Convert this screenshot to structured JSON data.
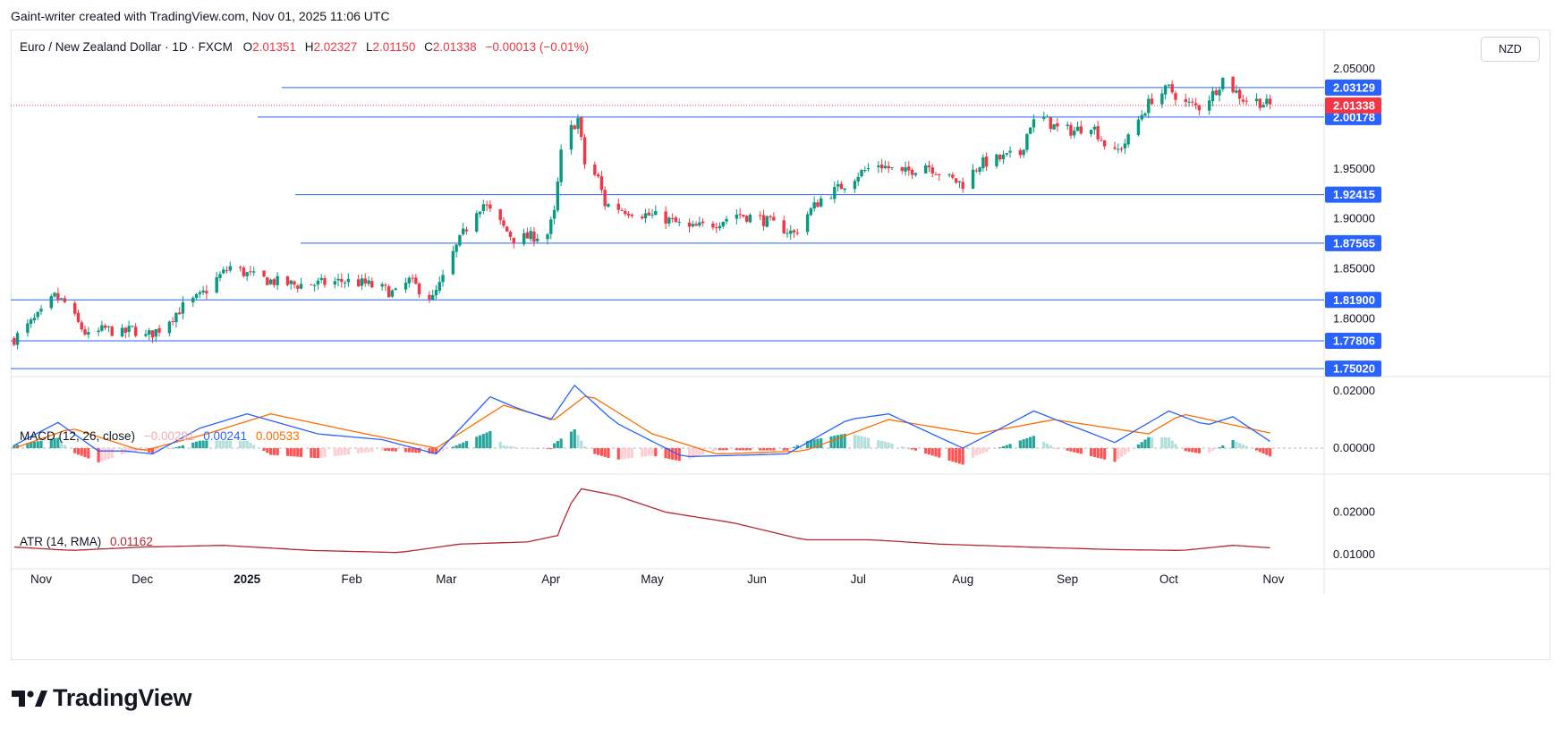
{
  "attribution": "Gaint-writer created with TradingView.com, Nov 01, 2025 11:06 UTC",
  "header": {
    "symbol": "Euro / New Zealand Dollar · 1D · FXCM",
    "o_label": "O",
    "o_value": "2.01351",
    "h_label": "H",
    "h_value": "2.02327",
    "l_label": "L",
    "l_value": "2.01150",
    "c_label": "C",
    "c_value": "2.01338",
    "change": "−0.00013 (−0.01%)",
    "currency": "NZD"
  },
  "macd_legend": {
    "name": "MACD (12, 26, close)",
    "hist": "−0.00291",
    "macd": "0.00241",
    "signal": "0.00533"
  },
  "atr_legend": {
    "name": "ATR (14, RMA)",
    "value": "0.01162"
  },
  "brand": "TradingView",
  "colors": {
    "up": "#22ab94",
    "down": "#f23645",
    "candle_up": "#089981",
    "level_line": "#2962ff",
    "macd": "#2962ff",
    "signal": "#ff6d00",
    "atr": "#b22833"
  },
  "chart_data": [
    {
      "type": "candlestick",
      "title": "Euro / New Zealand Dollar · 1D · FXCM",
      "x_labels": [
        "Nov",
        "Dec",
        "2025",
        "Feb",
        "Mar",
        "Apr",
        "May",
        "Jun",
        "Jul",
        "Aug",
        "Sep",
        "Oct",
        "Nov"
      ],
      "y_ticks": [
        "2.05000",
        "1.95000",
        "1.90000",
        "1.85000",
        "1.80000"
      ],
      "ylim": [
        1.745,
        2.058
      ],
      "current_price": "2.01338",
      "levels": [
        "2.03129",
        "2.00178",
        "1.92415",
        "1.87565",
        "1.81900",
        "1.77806",
        "1.75020"
      ],
      "close_path": [
        [
          "2024-10-24",
          1.78
        ],
        [
          "2024-11-01",
          1.805
        ],
        [
          "2024-11-05",
          1.822
        ],
        [
          "2024-11-08",
          1.816
        ],
        [
          "2024-11-12",
          1.795
        ],
        [
          "2024-11-15",
          1.782
        ],
        [
          "2024-11-20",
          1.79
        ],
        [
          "2024-11-25",
          1.785
        ],
        [
          "2024-11-28",
          1.79
        ],
        [
          "2024-12-02",
          1.782
        ],
        [
          "2024-12-06",
          1.79
        ],
        [
          "2024-12-09",
          1.8
        ],
        [
          "2024-12-13",
          1.812
        ],
        [
          "2024-12-18",
          1.822
        ],
        [
          "2024-12-23",
          1.84
        ],
        [
          "2024-12-27",
          1.852
        ],
        [
          "2025-01-03",
          1.842
        ],
        [
          "2025-01-08",
          1.838
        ],
        [
          "2025-01-15",
          1.834
        ],
        [
          "2025-01-22",
          1.835
        ],
        [
          "2025-01-30",
          1.838
        ],
        [
          "2025-02-05",
          1.835
        ],
        [
          "2025-02-10",
          1.83
        ],
        [
          "2025-02-14",
          1.825
        ],
        [
          "2025-02-18",
          1.838
        ],
        [
          "2025-02-21",
          1.83
        ],
        [
          "2025-02-25",
          1.82
        ],
        [
          "2025-02-28",
          1.84
        ],
        [
          "2025-03-03",
          1.865
        ],
        [
          "2025-03-06",
          1.885
        ],
        [
          "2025-03-10",
          1.91
        ],
        [
          "2025-03-12",
          1.915
        ],
        [
          "2025-03-17",
          1.895
        ],
        [
          "2025-03-21",
          1.88
        ],
        [
          "2025-03-26",
          1.882
        ],
        [
          "2025-03-31",
          1.885
        ],
        [
          "2025-04-02",
          1.905
        ],
        [
          "2025-04-04",
          1.965
        ],
        [
          "2025-04-07",
          1.99
        ],
        [
          "2025-04-09",
          2.0
        ],
        [
          "2025-04-11",
          1.955
        ],
        [
          "2025-04-15",
          1.94
        ],
        [
          "2025-04-17",
          1.915
        ],
        [
          "2025-04-22",
          1.91
        ],
        [
          "2025-04-28",
          1.905
        ],
        [
          "2025-05-05",
          1.9
        ],
        [
          "2025-05-12",
          1.89
        ],
        [
          "2025-05-19",
          1.895
        ],
        [
          "2025-05-26",
          1.905
        ],
        [
          "2025-06-02",
          1.9
        ],
        [
          "2025-06-09",
          1.89
        ],
        [
          "2025-06-12",
          1.885
        ],
        [
          "2025-06-16",
          1.905
        ],
        [
          "2025-06-20",
          1.92
        ],
        [
          "2025-06-25",
          1.93
        ],
        [
          "2025-07-01",
          1.945
        ],
        [
          "2025-07-07",
          1.955
        ],
        [
          "2025-07-14",
          1.945
        ],
        [
          "2025-07-21",
          1.955
        ],
        [
          "2025-07-28",
          1.94
        ],
        [
          "2025-08-01",
          1.935
        ],
        [
          "2025-08-06",
          1.955
        ],
        [
          "2025-08-12",
          1.96
        ],
        [
          "2025-08-18",
          1.965
        ],
        [
          "2025-08-21",
          1.995
        ],
        [
          "2025-08-25",
          2.0
        ],
        [
          "2025-08-29",
          1.99
        ],
        [
          "2025-09-03",
          1.988
        ],
        [
          "2025-09-08",
          1.995
        ],
        [
          "2025-09-12",
          1.975
        ],
        [
          "2025-09-15",
          1.965
        ],
        [
          "2025-09-19",
          1.98
        ],
        [
          "2025-09-23",
          2.005
        ],
        [
          "2025-09-26",
          2.02
        ],
        [
          "2025-10-01",
          2.03
        ],
        [
          "2025-10-06",
          2.015
        ],
        [
          "2025-10-10",
          2.012
        ],
        [
          "2025-10-14",
          2.025
        ],
        [
          "2025-10-17",
          2.04
        ],
        [
          "2025-10-20",
          2.03
        ],
        [
          "2025-10-23",
          2.02
        ],
        [
          "2025-10-27",
          2.018
        ],
        [
          "2025-10-31",
          2.0134
        ]
      ]
    },
    {
      "type": "line",
      "title": "MACD (12, 26, close)",
      "y_ticks": [
        "0.02000",
        "0.00000"
      ],
      "ylim": [
        -0.0075,
        0.0235
      ],
      "series": [
        {
          "name": "MACD",
          "values": [
            [
              "2024-10-24",
              0.001
            ],
            [
              "2024-11-06",
              0.009
            ],
            [
              "2024-11-18",
              -0.001
            ],
            [
              "2024-11-26",
              -0.001
            ],
            [
              "2024-12-04",
              -0.002
            ],
            [
              "2024-12-18",
              0.007
            ],
            [
              "2025-01-01",
              0.012
            ],
            [
              "2025-01-22",
              0.005
            ],
            [
              "2025-02-10",
              0.003
            ],
            [
              "2025-02-26",
              -0.002
            ],
            [
              "2025-03-14",
              0.018
            ],
            [
              "2025-03-22",
              0.014
            ],
            [
              "2025-04-01",
              0.01
            ],
            [
              "2025-04-08",
              0.022
            ],
            [
              "2025-04-20",
              0.009
            ],
            [
              "2025-05-10",
              -0.003
            ],
            [
              "2025-06-10",
              -0.002
            ],
            [
              "2025-06-28",
              0.01
            ],
            [
              "2025-07-10",
              0.012
            ],
            [
              "2025-08-01",
              0.0
            ],
            [
              "2025-08-22",
              0.013
            ],
            [
              "2025-09-15",
              0.002
            ],
            [
              "2025-10-01",
              0.013
            ],
            [
              "2025-10-12",
              0.008
            ],
            [
              "2025-10-20",
              0.011
            ],
            [
              "2025-10-31",
              0.0024
            ]
          ]
        },
        {
          "name": "Signal",
          "values": [
            [
              "2024-10-24",
              0.0
            ],
            [
              "2024-11-10",
              0.007
            ],
            [
              "2024-12-01",
              -0.001
            ],
            [
              "2024-12-20",
              0.005
            ],
            [
              "2025-01-08",
              0.012
            ],
            [
              "2025-02-01",
              0.006
            ],
            [
              "2025-02-26",
              0.0
            ],
            [
              "2025-03-18",
              0.015
            ],
            [
              "2025-04-02",
              0.01
            ],
            [
              "2025-04-12",
              0.019
            ],
            [
              "2025-05-01",
              0.005
            ],
            [
              "2025-05-20",
              -0.002
            ],
            [
              "2025-06-15",
              -0.001
            ],
            [
              "2025-07-10",
              0.01
            ],
            [
              "2025-08-05",
              0.005
            ],
            [
              "2025-08-28",
              0.01
            ],
            [
              "2025-09-25",
              0.005
            ],
            [
              "2025-10-05",
              0.012
            ],
            [
              "2025-10-31",
              0.0053
            ]
          ]
        }
      ],
      "histogram_last": "−0.00291"
    },
    {
      "type": "line",
      "title": "ATR (14, RMA)",
      "y_ticks": [
        "0.02000",
        "0.01000"
      ],
      "ylim": [
        0.0075,
        0.0275
      ],
      "series": [
        {
          "name": "ATR",
          "values": [
            [
              "2024-10-24",
              0.0118
            ],
            [
              "2024-11-10",
              0.011
            ],
            [
              "2024-12-01",
              0.0118
            ],
            [
              "2024-12-25",
              0.0122
            ],
            [
              "2025-01-20",
              0.011
            ],
            [
              "2025-02-15",
              0.0105
            ],
            [
              "2025-03-05",
              0.0125
            ],
            [
              "2025-03-25",
              0.013
            ],
            [
              "2025-04-03",
              0.0145
            ],
            [
              "2025-04-06",
              0.021
            ],
            [
              "2025-04-10",
              0.0255
            ],
            [
              "2025-04-20",
              0.024
            ],
            [
              "2025-05-05",
              0.02
            ],
            [
              "2025-05-25",
              0.0175
            ],
            [
              "2025-06-15",
              0.0135
            ],
            [
              "2025-07-05",
              0.0135
            ],
            [
              "2025-07-25",
              0.0125
            ],
            [
              "2025-08-20",
              0.0118
            ],
            [
              "2025-09-15",
              0.0112
            ],
            [
              "2025-10-05",
              0.011
            ],
            [
              "2025-10-20",
              0.0122
            ],
            [
              "2025-10-31",
              0.01162
            ]
          ]
        }
      ]
    }
  ]
}
